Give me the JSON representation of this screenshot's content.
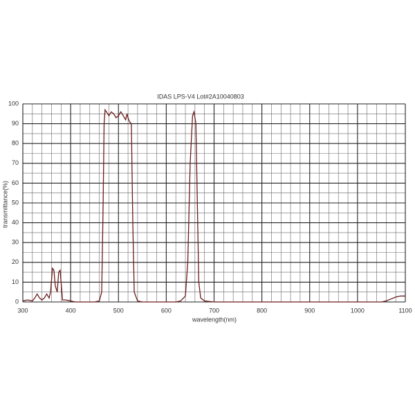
{
  "chart_data": {
    "type": "line",
    "title": "IDAS LPS-V4 Lot#2A10040803",
    "x_label": "wavelength(nm)",
    "y_label": "transmittance(%)",
    "xlim": [
      300,
      1100
    ],
    "ylim": [
      0,
      100
    ],
    "xticks": [
      300,
      400,
      500,
      600,
      700,
      800,
      900,
      1000,
      1100
    ],
    "yticks": [
      0,
      10,
      20,
      30,
      40,
      50,
      60,
      70,
      80,
      90,
      100
    ],
    "xminorticks": [
      320,
      340,
      360,
      380,
      420,
      440,
      460,
      480,
      520,
      540,
      560,
      580,
      620,
      640,
      660,
      680,
      720,
      740,
      760,
      780,
      820,
      840,
      860,
      880,
      920,
      940,
      960,
      980,
      1020,
      1040,
      1060,
      1080
    ],
    "yminorticks": [
      5,
      15,
      25,
      35,
      45,
      55,
      65,
      75,
      85,
      95
    ],
    "grid": true,
    "series": [
      {
        "color": "#6b1a1a",
        "x": [
          300,
          310,
          320,
          325,
          330,
          335,
          340,
          345,
          350,
          355,
          358,
          362,
          365,
          368,
          372,
          375,
          378,
          380,
          383,
          390,
          400,
          410,
          450,
          460,
          465,
          468,
          470,
          472,
          475,
          480,
          485,
          490,
          495,
          500,
          505,
          510,
          515,
          518,
          520,
          523,
          527,
          530,
          533,
          540,
          550,
          620,
          630,
          640,
          645,
          650,
          655,
          658,
          662,
          665,
          668,
          672,
          680,
          700,
          1000,
          1050,
          1060,
          1070,
          1080,
          1090,
          1100
        ],
        "values": [
          0.5,
          1,
          0.5,
          2,
          4,
          2,
          1,
          2,
          4,
          2,
          5,
          17,
          16,
          8,
          5,
          15,
          16,
          10,
          1,
          1,
          0.5,
          0,
          0,
          0.5,
          5,
          50,
          90,
          97,
          96,
          94,
          96,
          95,
          93,
          94,
          96,
          94,
          92,
          95,
          93,
          91,
          90,
          40,
          5,
          0.5,
          0,
          0,
          0.5,
          3,
          20,
          70,
          94,
          96,
          90,
          50,
          10,
          2,
          0.5,
          0,
          0,
          0,
          0.5,
          1.5,
          2.5,
          3,
          3
        ]
      }
    ]
  }
}
